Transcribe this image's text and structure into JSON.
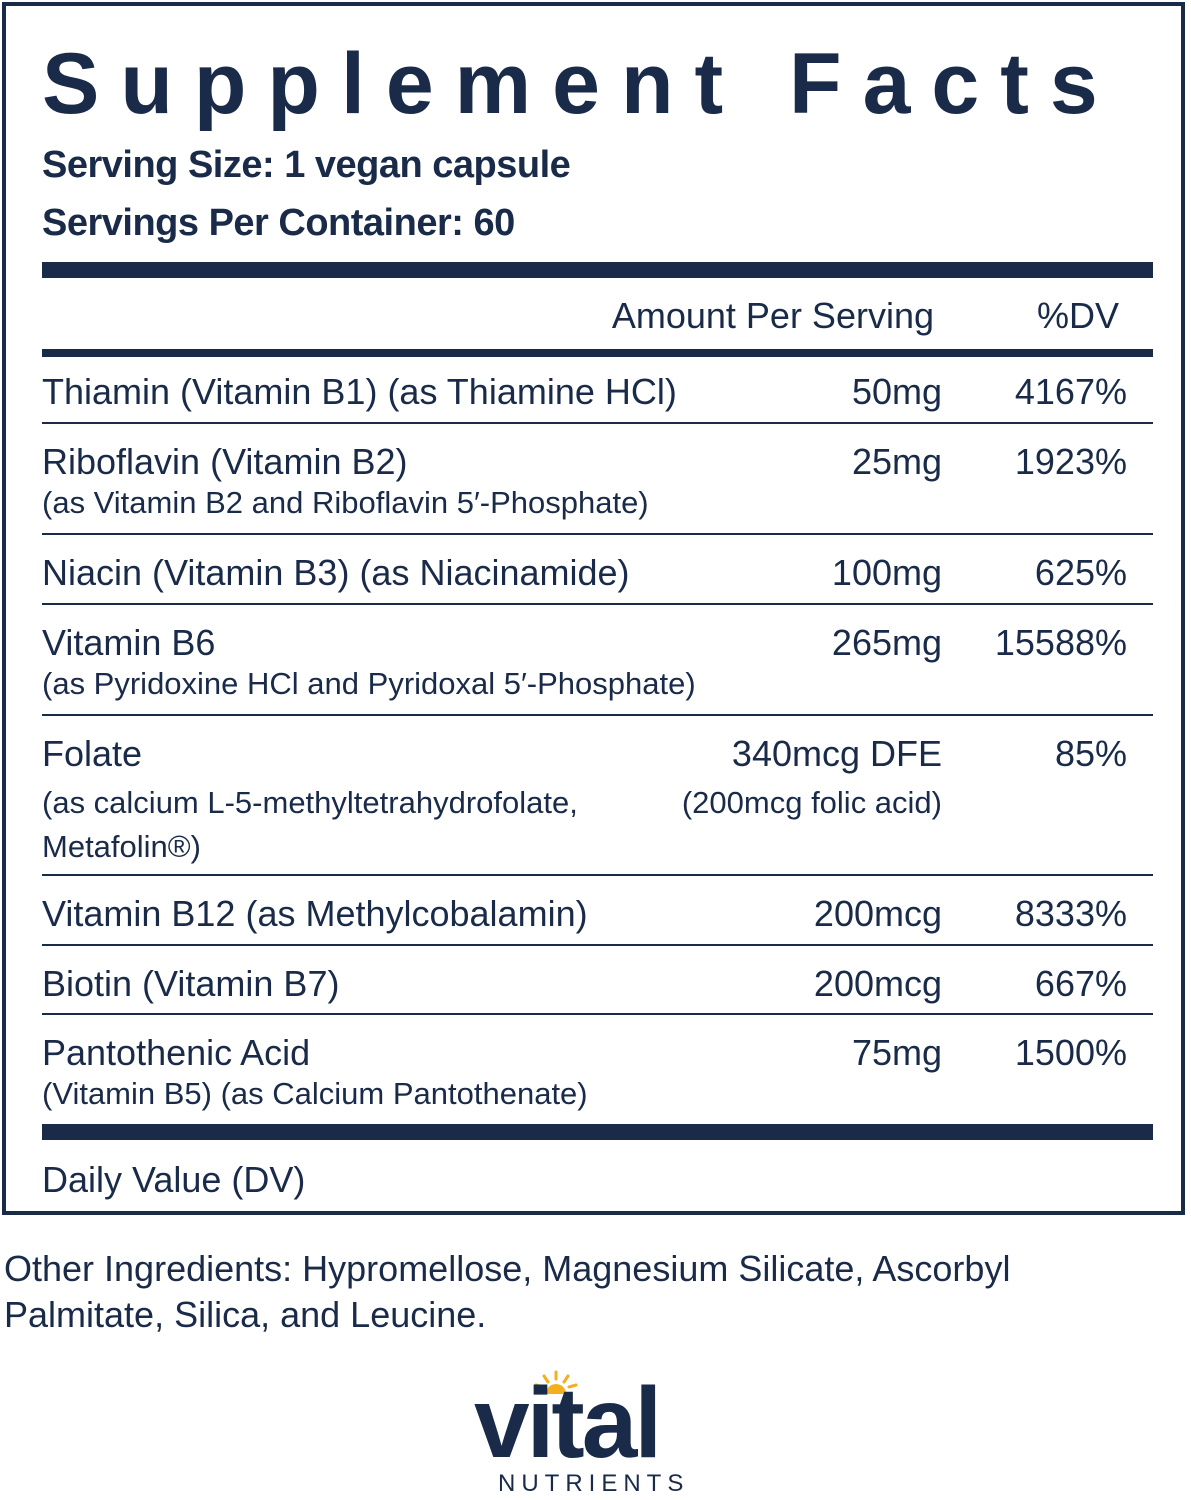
{
  "title": "Supplement Facts",
  "serving_size": "Serving Size: 1 vegan capsule",
  "servings_per_container": "Servings Per Container: 60",
  "headers": {
    "amount": "Amount Per Serving",
    "dv": "%DV"
  },
  "rows": [
    {
      "name": "Thiamin (Vitamin B1) (as Thiamine HCl)",
      "sub": "",
      "amount": "50mg",
      "amount_sub": "",
      "dv": "4167%"
    },
    {
      "name": "Riboflavin (Vitamin B2)",
      "sub": "(as Vitamin B2 and Riboflavin 5′-Phosphate)",
      "amount": "25mg",
      "amount_sub": "",
      "dv": "1923%"
    },
    {
      "name": "Niacin (Vitamin B3) (as Niacinamide)",
      "sub": "",
      "amount": "100mg",
      "amount_sub": "",
      "dv": "625%"
    },
    {
      "name": "Vitamin B6",
      "sub": "(as Pyridoxine HCl and Pyridoxal 5′-Phosphate)",
      "amount": "265mg",
      "amount_sub": "",
      "dv": "15588%"
    },
    {
      "name": "Folate",
      "sub": "(as calcium L-5-methyltetrahydrofolate,",
      "sub2": "Metafolin®)",
      "amount": "340mcg DFE",
      "amount_sub": "(200mcg folic acid)",
      "dv": "85%"
    },
    {
      "name": "Vitamin B12 (as Methylcobalamin)",
      "sub": "",
      "amount": "200mcg",
      "amount_sub": "",
      "dv": "8333%"
    },
    {
      "name": "Biotin (Vitamin B7)",
      "sub": "",
      "amount": "200mcg",
      "amount_sub": "",
      "dv": "667%"
    },
    {
      "name": "Pantothenic Acid",
      "sub": "(Vitamin B5) (as Calcium Pantothenate)",
      "amount": "75mg",
      "amount_sub": "",
      "dv": "1500%"
    }
  ],
  "footnote": "Daily Value (DV)",
  "other_ingredients": "Other Ingredients: Hypromellose, Magnesium Silicate, Ascorbyl Palmitate, Silica, and Leucine.",
  "brand": {
    "name": "vital",
    "tagline": "NUTRIENTS",
    "accent_color": "#f2b01e"
  },
  "colors": {
    "ink": "#1a2b4a"
  }
}
